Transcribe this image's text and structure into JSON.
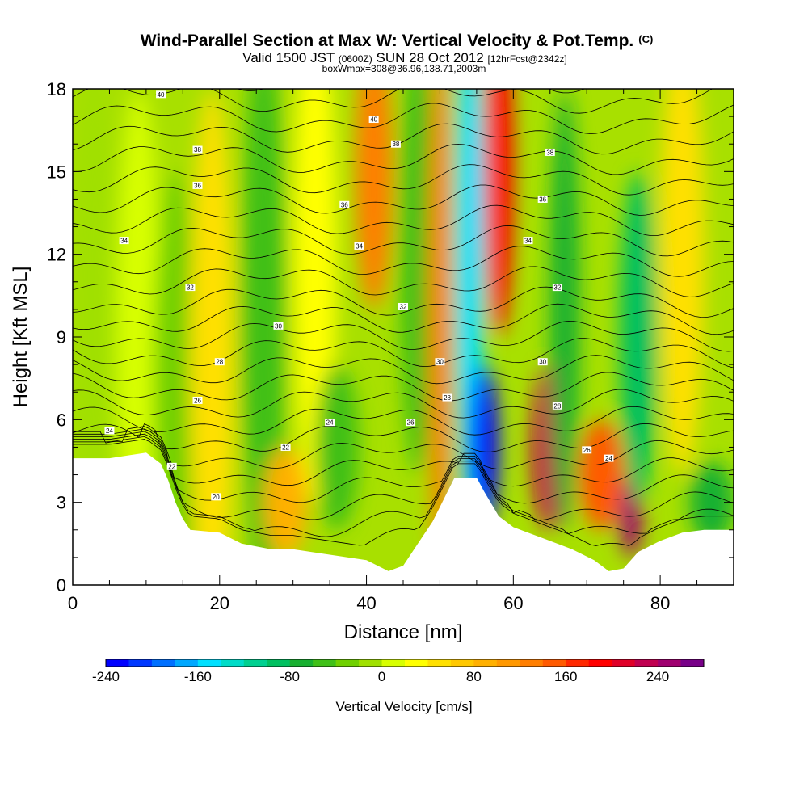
{
  "title": {
    "main": "Wind-Parallel Section at Max W: Vertical Velocity & Pot.Temp.",
    "main_suffix": "(C)",
    "sub_prefix": "Valid 1500 JST",
    "sub_small_1": "(0600Z)",
    "sub_mid": "SUN 28 Oct 2012",
    "sub_small_2": "[12hrFcst@2342z]",
    "line3": "boxWmax=308@36.96,138.71,2003m"
  },
  "chart_data": {
    "type": "heatmap",
    "xlabel": "Distance [nm]",
    "ylabel": "Height [Kft MSL]",
    "xlim": [
      0,
      90
    ],
    "ylim": [
      0,
      18
    ],
    "x_ticks": [
      "0",
      "20",
      "40",
      "60",
      "80"
    ],
    "y_ticks": [
      "0",
      "3",
      "6",
      "9",
      "12",
      "15",
      "18"
    ],
    "terrain_top_kft": [
      [
        0,
        4.6
      ],
      [
        5,
        4.6
      ],
      [
        10,
        4.8
      ],
      [
        12,
        4.4
      ],
      [
        13,
        3.8
      ],
      [
        14,
        3.0
      ],
      [
        15,
        2.4
      ],
      [
        16,
        2.0
      ],
      [
        20,
        1.9
      ],
      [
        23,
        1.5
      ],
      [
        27,
        1.3
      ],
      [
        30,
        1.3
      ],
      [
        35,
        1.1
      ],
      [
        40,
        0.9
      ],
      [
        43,
        0.5
      ],
      [
        45,
        0.7
      ],
      [
        47,
        1.5
      ],
      [
        49,
        2.3
      ],
      [
        52,
        3.9
      ],
      [
        55,
        3.9
      ],
      [
        56,
        3.4
      ],
      [
        58,
        2.5
      ],
      [
        60,
        2.1
      ],
      [
        62,
        1.9
      ],
      [
        64,
        1.7
      ],
      [
        68,
        1.3
      ],
      [
        71,
        0.9
      ],
      [
        73,
        0.5
      ],
      [
        75,
        0.6
      ],
      [
        77,
        1.2
      ],
      [
        80,
        1.6
      ],
      [
        83,
        1.9
      ],
      [
        86,
        2.0
      ],
      [
        90,
        2.0
      ]
    ],
    "vertical_velocity_cells_cms": [
      {
        "x": 3,
        "y": 10,
        "v": -20,
        "rx": 3,
        "ry": 9
      },
      {
        "x": 9,
        "y": 9,
        "v": 10,
        "rx": 3,
        "ry": 9
      },
      {
        "x": 14,
        "y": 7,
        "v": -40,
        "rx": 3,
        "ry": 8
      },
      {
        "x": 19,
        "y": 8,
        "v": 40,
        "rx": 3,
        "ry": 10
      },
      {
        "x": 26,
        "y": 10,
        "v": -60,
        "rx": 3,
        "ry": 10
      },
      {
        "x": 29,
        "y": 3,
        "v": 90,
        "rx": 3,
        "ry": 2
      },
      {
        "x": 33,
        "y": 12,
        "v": 20,
        "rx": 3,
        "ry": 9
      },
      {
        "x": 36,
        "y": 5,
        "v": -60,
        "rx": 3,
        "ry": 3
      },
      {
        "x": 41,
        "y": 15,
        "v": 130,
        "rx": 2.5,
        "ry": 5
      },
      {
        "x": 47,
        "y": 12,
        "v": -60,
        "rx": 2.5,
        "ry": 8
      },
      {
        "x": 50,
        "y": 10,
        "v": 120,
        "rx": 1.5,
        "ry": 10
      },
      {
        "x": 54,
        "y": 12,
        "v": -150,
        "rx": 2,
        "ry": 10
      },
      {
        "x": 56,
        "y": 5,
        "v": -240,
        "rx": 2,
        "ry": 3
      },
      {
        "x": 58,
        "y": 15,
        "v": 190,
        "rx": 2,
        "ry": 6
      },
      {
        "x": 65,
        "y": 5,
        "v": 220,
        "rx": 2.5,
        "ry": 3
      },
      {
        "x": 67,
        "y": 10,
        "v": -70,
        "rx": 2,
        "ry": 8
      },
      {
        "x": 72,
        "y": 4,
        "v": 140,
        "rx": 3,
        "ry": 2
      },
      {
        "x": 76,
        "y": 2.5,
        "v": 250,
        "rx": 1.5,
        "ry": 1.5
      },
      {
        "x": 77,
        "y": 9,
        "v": -100,
        "rx": 2.5,
        "ry": 6
      },
      {
        "x": 83,
        "y": 12,
        "v": 50,
        "rx": 3,
        "ry": 8
      },
      {
        "x": 87,
        "y": 3,
        "v": -70,
        "rx": 3,
        "ry": 1.5
      }
    ],
    "potential_temperature_contour_labels": [
      {
        "text": "40",
        "x": 12,
        "y": 17.8
      },
      {
        "text": "40",
        "x": 41,
        "y": 16.9
      },
      {
        "text": "38",
        "x": 17,
        "y": 15.8
      },
      {
        "text": "38",
        "x": 44,
        "y": 16.0
      },
      {
        "text": "38",
        "x": 65,
        "y": 15.7
      },
      {
        "text": "36",
        "x": 17,
        "y": 14.5
      },
      {
        "text": "36",
        "x": 37,
        "y": 13.8
      },
      {
        "text": "36",
        "x": 64,
        "y": 14.0
      },
      {
        "text": "34",
        "x": 7,
        "y": 12.5
      },
      {
        "text": "34",
        "x": 39,
        "y": 12.3
      },
      {
        "text": "34",
        "x": 62,
        "y": 12.5
      },
      {
        "text": "32",
        "x": 16,
        "y": 10.8
      },
      {
        "text": "32",
        "x": 45,
        "y": 10.1
      },
      {
        "text": "32",
        "x": 66,
        "y": 10.8
      },
      {
        "text": "30",
        "x": 28,
        "y": 9.4
      },
      {
        "text": "30",
        "x": 50,
        "y": 8.1
      },
      {
        "text": "30",
        "x": 64,
        "y": 8.1
      },
      {
        "text": "28",
        "x": 20,
        "y": 8.1
      },
      {
        "text": "28",
        "x": 51,
        "y": 6.8
      },
      {
        "text": "28",
        "x": 66,
        "y": 6.5
      },
      {
        "text": "26",
        "x": 17,
        "y": 6.7
      },
      {
        "text": "26",
        "x": 46,
        "y": 5.9
      },
      {
        "text": "26",
        "x": 70,
        "y": 4.9
      },
      {
        "text": "24",
        "x": 5,
        "y": 5.6
      },
      {
        "text": "24",
        "x": 35,
        "y": 5.9
      },
      {
        "text": "24",
        "x": 73,
        "y": 4.6
      },
      {
        "text": "22",
        "x": 29,
        "y": 5.0
      },
      {
        "text": "22",
        "x": 13.5,
        "y": 4.3
      },
      {
        "text": "20",
        "x": 19.5,
        "y": 3.2
      }
    ],
    "colorbar": {
      "label": "Vertical Velocity [cm/s]",
      "min": -240,
      "max": 280,
      "step": 20,
      "tick_labels": [
        "-240",
        "-160",
        "-80",
        "0",
        "80",
        "160",
        "240"
      ],
      "colors": [
        "#0000ff",
        "#0038ff",
        "#0070ff",
        "#00a8ff",
        "#00e0ff",
        "#00dcc8",
        "#00d090",
        "#00c060",
        "#18b030",
        "#40c018",
        "#70d000",
        "#a0e000",
        "#d8ff00",
        "#ffff00",
        "#ffe000",
        "#ffc800",
        "#ffb000",
        "#ff9800",
        "#ff7e00",
        "#ff5a00",
        "#ff2800",
        "#ff0000",
        "#e00028",
        "#c00050",
        "#a00070",
        "#780088"
      ]
    }
  }
}
